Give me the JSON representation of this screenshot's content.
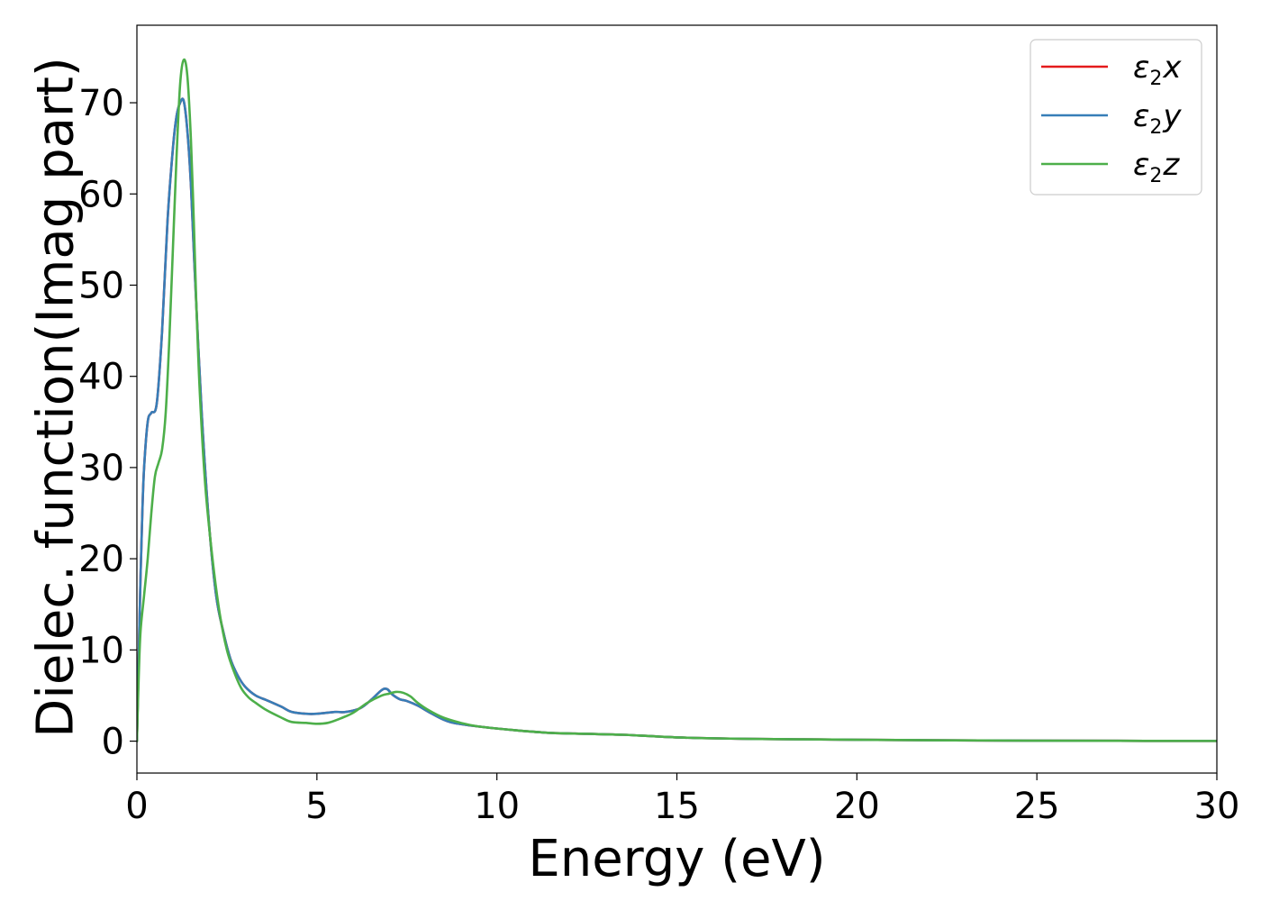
{
  "chart_data": {
    "type": "line",
    "title": "",
    "xlabel": "Energy (eV)",
    "ylabel": "Dielec. function(Imag part)",
    "xlim": [
      0,
      30
    ],
    "ylim": [
      -3.5,
      78.5
    ],
    "xticks": [
      0,
      5,
      10,
      15,
      20,
      25,
      30
    ],
    "yticks": [
      0,
      10,
      20,
      30,
      40,
      50,
      60,
      70
    ],
    "grid": false,
    "legend_position": "top-right",
    "series": [
      {
        "name": "ε2x",
        "legend_symbol": "ε",
        "legend_subscript": "2",
        "legend_axis": "x",
        "color": "#e41a1c",
        "x": [
          0,
          0.05,
          0.1,
          0.15,
          0.2,
          0.3,
          0.4,
          0.55,
          0.7,
          0.85,
          1.0,
          1.1,
          1.2,
          1.3,
          1.4,
          1.5,
          1.6,
          1.8,
          2.0,
          2.2,
          2.4,
          2.6,
          2.8,
          3.0,
          3.3,
          3.6,
          4.0,
          4.3,
          4.7,
          5.0,
          5.5,
          5.8,
          6.2,
          6.5,
          6.8,
          6.95,
          7.1,
          7.3,
          7.5,
          7.8,
          8.2,
          8.7,
          9.5,
          10.5,
          11.5,
          12.5,
          13.5,
          14.5,
          15.5,
          17,
          18.5,
          20,
          22,
          25,
          30
        ],
        "y": [
          0,
          9,
          18,
          25,
          30,
          35,
          36,
          37,
          45,
          57,
          65,
          68.5,
          70,
          70.2,
          67,
          61,
          52,
          36,
          24,
          16,
          12,
          9,
          7.2,
          6,
          5,
          4.5,
          3.8,
          3.2,
          3.0,
          3.0,
          3.2,
          3.2,
          3.6,
          4.5,
          5.6,
          5.7,
          5.1,
          4.6,
          4.4,
          3.9,
          3.0,
          2.1,
          1.6,
          1.2,
          0.9,
          0.8,
          0.7,
          0.5,
          0.35,
          0.25,
          0.2,
          0.15,
          0.1,
          0.05,
          0.02
        ]
      },
      {
        "name": "ε2y",
        "legend_symbol": "ε",
        "legend_subscript": "2",
        "legend_axis": "y",
        "color": "#377eb8",
        "x": [
          0,
          0.05,
          0.1,
          0.15,
          0.2,
          0.3,
          0.4,
          0.55,
          0.7,
          0.85,
          1.0,
          1.1,
          1.2,
          1.3,
          1.4,
          1.5,
          1.6,
          1.8,
          2.0,
          2.2,
          2.4,
          2.6,
          2.8,
          3.0,
          3.3,
          3.6,
          4.0,
          4.3,
          4.7,
          5.0,
          5.5,
          5.8,
          6.2,
          6.5,
          6.8,
          6.95,
          7.1,
          7.3,
          7.5,
          7.8,
          8.2,
          8.7,
          9.5,
          10.5,
          11.5,
          12.5,
          13.5,
          14.5,
          15.5,
          17,
          18.5,
          20,
          22,
          25,
          30
        ],
        "y": [
          0,
          9,
          18,
          25,
          30,
          35,
          36,
          37,
          45,
          57,
          65,
          68.5,
          70,
          70.2,
          67,
          61,
          52,
          36,
          24,
          16,
          12,
          9,
          7.2,
          6,
          5,
          4.5,
          3.8,
          3.2,
          3.0,
          3.0,
          3.2,
          3.2,
          3.6,
          4.5,
          5.6,
          5.7,
          5.1,
          4.6,
          4.4,
          3.9,
          3.0,
          2.1,
          1.6,
          1.2,
          0.9,
          0.8,
          0.7,
          0.5,
          0.35,
          0.25,
          0.2,
          0.15,
          0.1,
          0.05,
          0.02
        ]
      },
      {
        "name": "ε2z",
        "legend_symbol": "ε",
        "legend_subscript": "2",
        "legend_axis": "z",
        "color": "#4daf4a",
        "x": [
          0,
          0.05,
          0.1,
          0.2,
          0.3,
          0.4,
          0.5,
          0.6,
          0.7,
          0.8,
          0.9,
          1.0,
          1.1,
          1.2,
          1.3,
          1.4,
          1.5,
          1.58,
          1.65,
          1.75,
          1.9,
          2.1,
          2.3,
          2.5,
          2.7,
          2.9,
          3.1,
          3.3,
          3.6,
          4.0,
          4.3,
          4.7,
          5.0,
          5.3,
          5.6,
          6.0,
          6.4,
          6.8,
          7.0,
          7.2,
          7.4,
          7.6,
          7.8,
          8.1,
          8.5,
          9.0,
          9.5,
          10.5,
          11.5,
          12.5,
          13.5,
          14.5,
          15.5,
          17,
          18.5,
          20,
          22,
          25,
          30
        ],
        "y": [
          0,
          7,
          12,
          16,
          20,
          25,
          29,
          30.5,
          32,
          36,
          44,
          54,
          64,
          72,
          74.7,
          73,
          66,
          57,
          48,
          38,
          28,
          20,
          14,
          10,
          7.6,
          5.8,
          4.8,
          4.2,
          3.4,
          2.6,
          2.1,
          2.0,
          1.9,
          2.0,
          2.4,
          3.1,
          4.2,
          5.0,
          5.2,
          5.4,
          5.3,
          4.9,
          4.2,
          3.4,
          2.6,
          2.0,
          1.6,
          1.2,
          0.9,
          0.8,
          0.7,
          0.5,
          0.35,
          0.25,
          0.2,
          0.15,
          0.1,
          0.05,
          0.02
        ]
      }
    ]
  }
}
